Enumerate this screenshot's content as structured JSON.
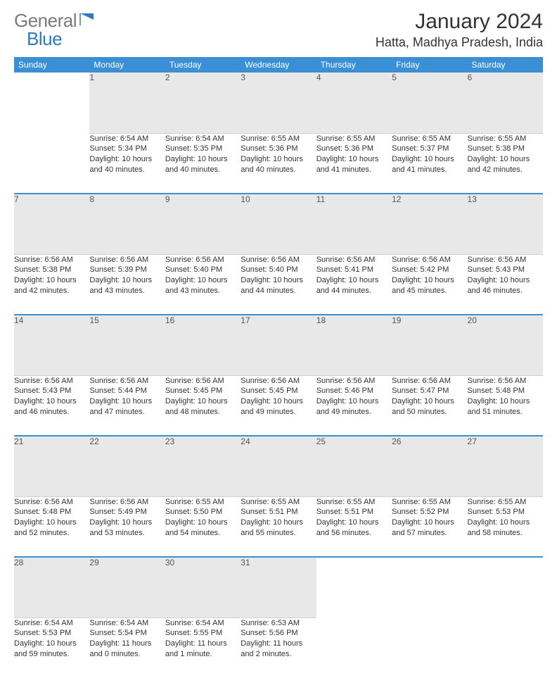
{
  "logo": {
    "text1": "General",
    "text2": "Blue"
  },
  "title": "January 2024",
  "location": "Hatta, Madhya Pradesh, India",
  "colors": {
    "header_bg": "#3b8fd4",
    "header_text": "#ffffff",
    "daynum_bg": "#e8e8e8",
    "daynum_text": "#555555",
    "row_divider": "#3b8fd4",
    "body_text": "#333333",
    "logo_gray": "#7a7a7a",
    "logo_blue": "#2b7cbf",
    "background": "#ffffff"
  },
  "day_headers": [
    "Sunday",
    "Monday",
    "Tuesday",
    "Wednesday",
    "Thursday",
    "Friday",
    "Saturday"
  ],
  "fonts": {
    "family": "Arial",
    "header_size_pt": 9,
    "cell_size_pt": 8,
    "title_size_pt": 22,
    "location_size_pt": 14
  },
  "weeks": [
    [
      null,
      {
        "n": "1",
        "sr": "6:54 AM",
        "ss": "5:34 PM",
        "dl": "10 hours and 40 minutes."
      },
      {
        "n": "2",
        "sr": "6:54 AM",
        "ss": "5:35 PM",
        "dl": "10 hours and 40 minutes."
      },
      {
        "n": "3",
        "sr": "6:55 AM",
        "ss": "5:36 PM",
        "dl": "10 hours and 40 minutes."
      },
      {
        "n": "4",
        "sr": "6:55 AM",
        "ss": "5:36 PM",
        "dl": "10 hours and 41 minutes."
      },
      {
        "n": "5",
        "sr": "6:55 AM",
        "ss": "5:37 PM",
        "dl": "10 hours and 41 minutes."
      },
      {
        "n": "6",
        "sr": "6:55 AM",
        "ss": "5:38 PM",
        "dl": "10 hours and 42 minutes."
      }
    ],
    [
      {
        "n": "7",
        "sr": "6:56 AM",
        "ss": "5:38 PM",
        "dl": "10 hours and 42 minutes."
      },
      {
        "n": "8",
        "sr": "6:56 AM",
        "ss": "5:39 PM",
        "dl": "10 hours and 43 minutes."
      },
      {
        "n": "9",
        "sr": "6:56 AM",
        "ss": "5:40 PM",
        "dl": "10 hours and 43 minutes."
      },
      {
        "n": "10",
        "sr": "6:56 AM",
        "ss": "5:40 PM",
        "dl": "10 hours and 44 minutes."
      },
      {
        "n": "11",
        "sr": "6:56 AM",
        "ss": "5:41 PM",
        "dl": "10 hours and 44 minutes."
      },
      {
        "n": "12",
        "sr": "6:56 AM",
        "ss": "5:42 PM",
        "dl": "10 hours and 45 minutes."
      },
      {
        "n": "13",
        "sr": "6:56 AM",
        "ss": "5:43 PM",
        "dl": "10 hours and 46 minutes."
      }
    ],
    [
      {
        "n": "14",
        "sr": "6:56 AM",
        "ss": "5:43 PM",
        "dl": "10 hours and 46 minutes."
      },
      {
        "n": "15",
        "sr": "6:56 AM",
        "ss": "5:44 PM",
        "dl": "10 hours and 47 minutes."
      },
      {
        "n": "16",
        "sr": "6:56 AM",
        "ss": "5:45 PM",
        "dl": "10 hours and 48 minutes."
      },
      {
        "n": "17",
        "sr": "6:56 AM",
        "ss": "5:45 PM",
        "dl": "10 hours and 49 minutes."
      },
      {
        "n": "18",
        "sr": "6:56 AM",
        "ss": "5:46 PM",
        "dl": "10 hours and 49 minutes."
      },
      {
        "n": "19",
        "sr": "6:56 AM",
        "ss": "5:47 PM",
        "dl": "10 hours and 50 minutes."
      },
      {
        "n": "20",
        "sr": "6:56 AM",
        "ss": "5:48 PM",
        "dl": "10 hours and 51 minutes."
      }
    ],
    [
      {
        "n": "21",
        "sr": "6:56 AM",
        "ss": "5:48 PM",
        "dl": "10 hours and 52 minutes."
      },
      {
        "n": "22",
        "sr": "6:56 AM",
        "ss": "5:49 PM",
        "dl": "10 hours and 53 minutes."
      },
      {
        "n": "23",
        "sr": "6:55 AM",
        "ss": "5:50 PM",
        "dl": "10 hours and 54 minutes."
      },
      {
        "n": "24",
        "sr": "6:55 AM",
        "ss": "5:51 PM",
        "dl": "10 hours and 55 minutes."
      },
      {
        "n": "25",
        "sr": "6:55 AM",
        "ss": "5:51 PM",
        "dl": "10 hours and 56 minutes."
      },
      {
        "n": "26",
        "sr": "6:55 AM",
        "ss": "5:52 PM",
        "dl": "10 hours and 57 minutes."
      },
      {
        "n": "27",
        "sr": "6:55 AM",
        "ss": "5:53 PM",
        "dl": "10 hours and 58 minutes."
      }
    ],
    [
      {
        "n": "28",
        "sr": "6:54 AM",
        "ss": "5:53 PM",
        "dl": "10 hours and 59 minutes."
      },
      {
        "n": "29",
        "sr": "6:54 AM",
        "ss": "5:54 PM",
        "dl": "11 hours and 0 minutes."
      },
      {
        "n": "30",
        "sr": "6:54 AM",
        "ss": "5:55 PM",
        "dl": "11 hours and 1 minute."
      },
      {
        "n": "31",
        "sr": "6:53 AM",
        "ss": "5:56 PM",
        "dl": "11 hours and 2 minutes."
      },
      null,
      null,
      null
    ]
  ],
  "labels": {
    "sunrise": "Sunrise:",
    "sunset": "Sunset:",
    "daylight": "Daylight:"
  }
}
